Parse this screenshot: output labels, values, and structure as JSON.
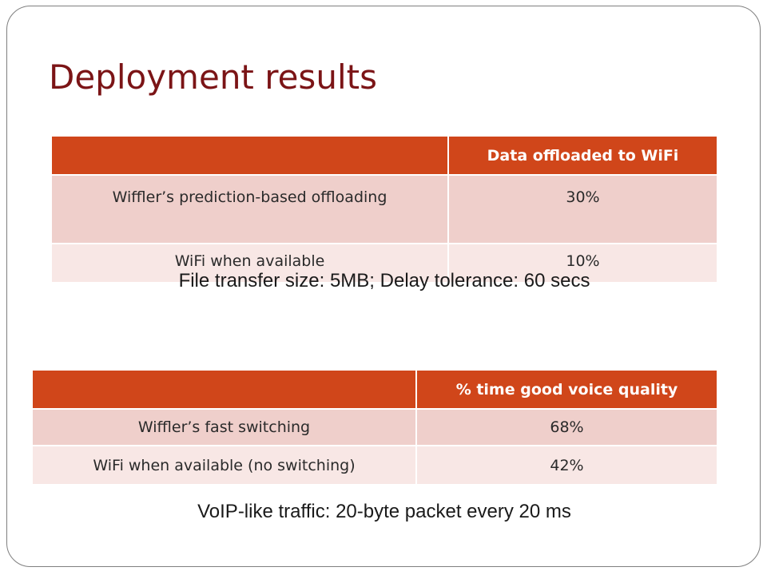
{
  "title": "Deployment results",
  "table1": {
    "header": [
      "",
      "Data offloaded to WiFi"
    ],
    "rows": [
      {
        "label": "Wiffler’s prediction-based offloading",
        "value": "30%"
      },
      {
        "label": "WiFi when available",
        "value": "10%"
      }
    ],
    "caption": "File transfer size: 5MB; Delay tolerance: 60 secs"
  },
  "table2": {
    "header": [
      "",
      "% time good voice quality"
    ],
    "rows": [
      {
        "label": "Wiffler’s fast switching",
        "value": "68%"
      },
      {
        "label": "WiFi when available (no switching)",
        "value": "42%"
      }
    ],
    "caption": "VoIP-like traffic: 20-byte packet every 20 ms"
  },
  "colors": {
    "title": "#7b1416",
    "header_fill": "#d0461a",
    "row_odd": "#efcfcb",
    "row_even": "#f8e7e5"
  }
}
